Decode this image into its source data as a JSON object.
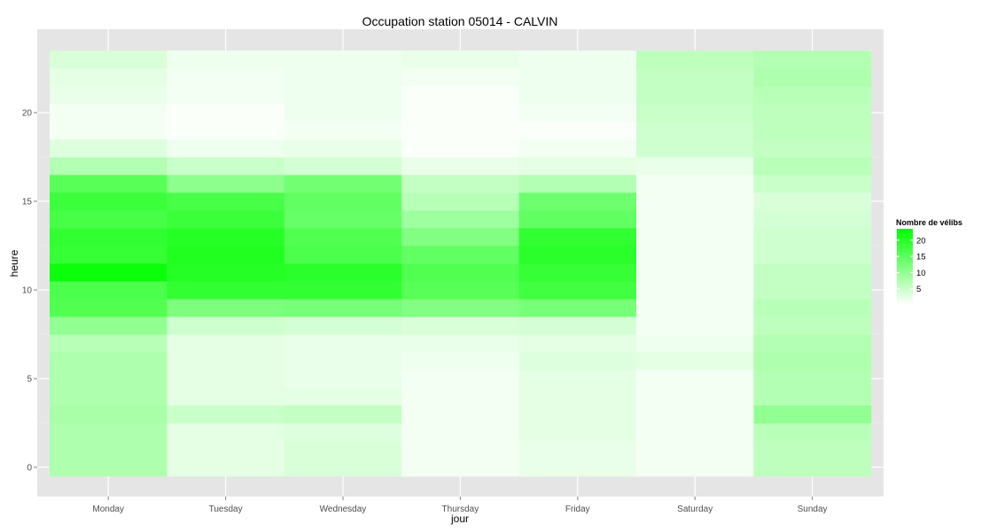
{
  "chart_data": {
    "type": "heatmap",
    "title": "Occupation station 05014 - CALVIN",
    "xlabel": "jour",
    "ylabel": "heure",
    "categories": [
      "Monday",
      "Tuesday",
      "Wednesday",
      "Thursday",
      "Friday",
      "Saturday",
      "Sunday"
    ],
    "y_values": [
      0,
      1,
      2,
      3,
      4,
      5,
      6,
      7,
      8,
      9,
      10,
      11,
      12,
      13,
      14,
      15,
      16,
      17,
      18,
      19,
      20,
      21,
      22,
      23
    ],
    "ylim": [
      -0.5,
      23.5
    ],
    "y_ticks": [
      0,
      5,
      10,
      15,
      20
    ],
    "grid": true,
    "values": [
      [
        7.5,
        2.5,
        3.5,
        1.0,
        2.0,
        1.0,
        6.0
      ],
      [
        7.5,
        2.5,
        3.5,
        1.0,
        2.0,
        1.0,
        6.0
      ],
      [
        7.5,
        2.5,
        3.0,
        1.0,
        2.5,
        1.0,
        6.5
      ],
      [
        8.0,
        5.0,
        5.5,
        1.0,
        2.5,
        1.0,
        10.0
      ],
      [
        7.5,
        2.5,
        2.5,
        1.0,
        2.5,
        1.0,
        7.0
      ],
      [
        7.5,
        2.5,
        2.0,
        1.0,
        2.5,
        1.0,
        7.0
      ],
      [
        7.5,
        2.5,
        2.0,
        1.5,
        3.0,
        2.5,
        7.5
      ],
      [
        6.5,
        2.5,
        2.0,
        2.0,
        2.5,
        1.5,
        7.0
      ],
      [
        10.0,
        4.5,
        4.0,
        3.5,
        4.0,
        1.0,
        6.0
      ],
      [
        16.0,
        12.0,
        12.5,
        11.5,
        12.5,
        1.0,
        6.5
      ],
      [
        16.5,
        19.0,
        19.0,
        15.5,
        17.5,
        1.0,
        5.5
      ],
      [
        22.5,
        20.0,
        19.5,
        16.0,
        18.5,
        1.0,
        5.5
      ],
      [
        18.5,
        20.5,
        16.5,
        14.5,
        19.5,
        1.0,
        4.5
      ],
      [
        19.0,
        20.0,
        16.0,
        11.5,
        19.0,
        1.0,
        4.5
      ],
      [
        17.0,
        18.0,
        14.0,
        9.0,
        14.5,
        1.0,
        4.0
      ],
      [
        18.0,
        17.0,
        14.5,
        6.5,
        13.5,
        1.0,
        3.5
      ],
      [
        15.5,
        10.5,
        13.0,
        5.5,
        7.0,
        1.0,
        5.0
      ],
      [
        7.0,
        5.0,
        4.0,
        2.0,
        2.5,
        2.0,
        6.5
      ],
      [
        3.0,
        1.5,
        2.0,
        0.5,
        1.0,
        4.5,
        5.5
      ],
      [
        1.0,
        0.5,
        1.0,
        0.5,
        0.5,
        4.5,
        6.0
      ],
      [
        1.0,
        0.5,
        1.5,
        0.5,
        1.0,
        5.0,
        6.0
      ],
      [
        2.0,
        1.0,
        1.5,
        0.5,
        1.5,
        5.5,
        6.5
      ],
      [
        2.5,
        1.0,
        1.5,
        1.0,
        1.5,
        5.5,
        7.5
      ],
      [
        3.5,
        1.5,
        1.5,
        2.0,
        1.5,
        6.0,
        7.0
      ]
    ],
    "color_scale": {
      "low": "#ffffff",
      "high": "#00ff00",
      "min": 0,
      "max": 23.5
    },
    "legend": {
      "title": "Nombre de vélibs",
      "position": "right",
      "breaks": [
        5,
        10,
        15,
        20
      ]
    }
  }
}
